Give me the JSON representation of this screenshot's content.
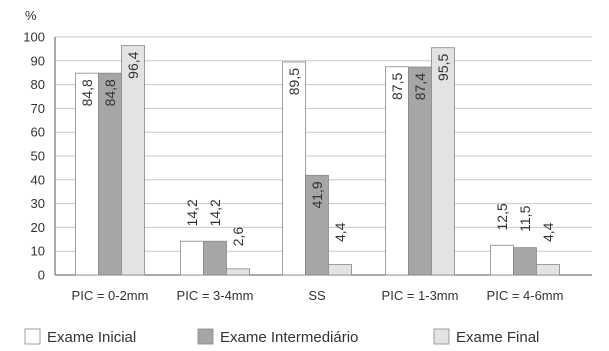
{
  "chart_data": {
    "type": "bar",
    "unit_label": "%",
    "categories": [
      "PIC = 0-2mm",
      "PIC = 3-4mm",
      "SS",
      "PIC = 1-3mm",
      "PIC = 4-6mm"
    ],
    "series": [
      {
        "name": "Exame Inicial",
        "color": "#ffffff",
        "values": [
          84.8,
          14.2,
          89.5,
          87.5,
          12.5
        ],
        "labels": [
          "84,8",
          "14,2",
          "89,5",
          "87,5",
          "12,5"
        ]
      },
      {
        "name": "Exame Intermediário",
        "color": "#a6a6a6",
        "values": [
          84.8,
          14.2,
          41.9,
          87.4,
          11.5
        ],
        "labels": [
          "84,8",
          "14,2",
          "41,9",
          "87,4",
          "11,5"
        ]
      },
      {
        "name": "Exame Final",
        "color": "#e3e3e3",
        "values": [
          96.4,
          2.6,
          4.4,
          95.5,
          4.4
        ],
        "labels": [
          "96,4",
          "2,6",
          "4,4",
          "95,5",
          "4,4"
        ]
      }
    ],
    "yticks": [
      0,
      10,
      20,
      30,
      40,
      50,
      60,
      70,
      80,
      90,
      100
    ],
    "ylim": [
      0,
      100
    ],
    "grid": true,
    "legend_position": "bottom"
  }
}
